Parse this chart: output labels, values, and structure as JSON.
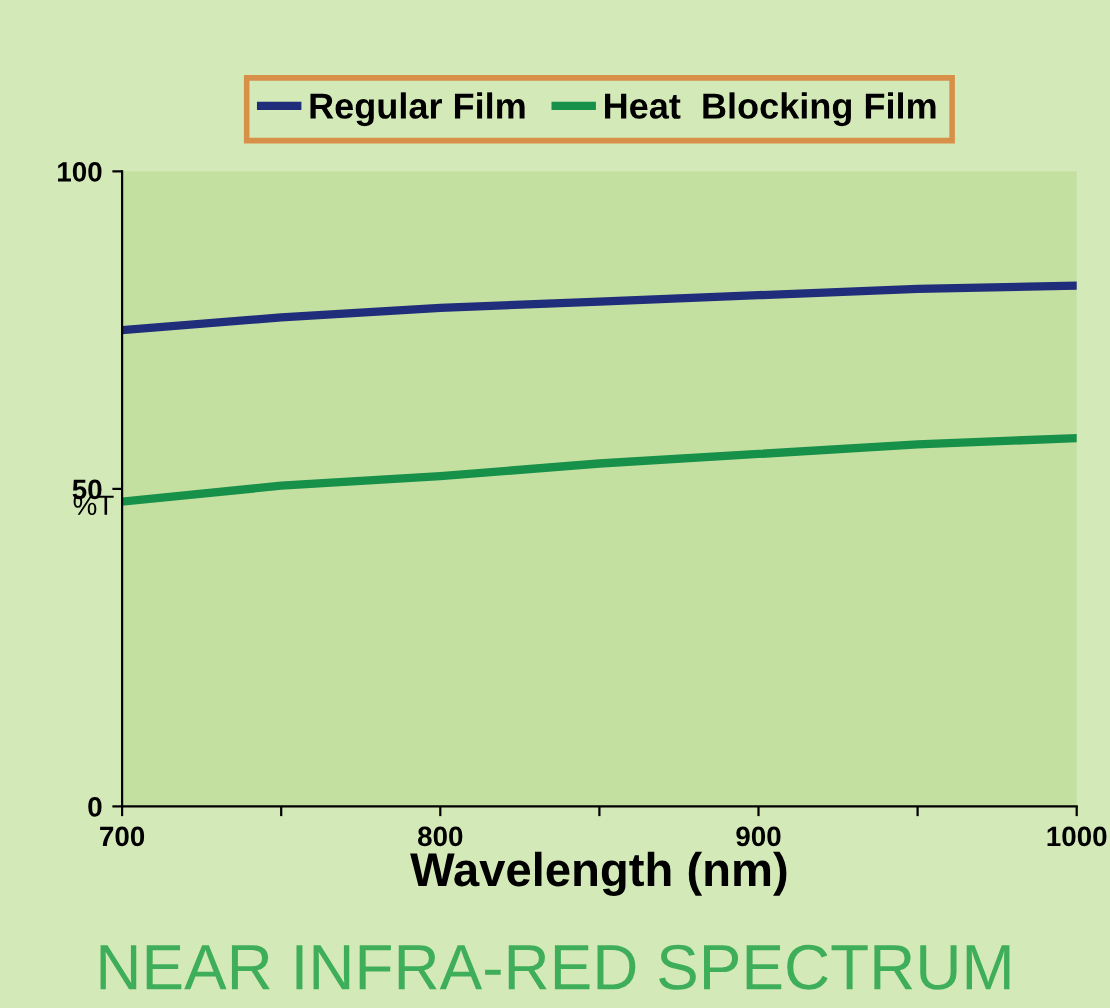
{
  "chart_data": {
    "type": "line",
    "title": "NEAR INFRA-RED SPECTRUM",
    "xlabel": "Wavelength (nm)",
    "ylabel": "%T",
    "xlim": [
      700,
      1000
    ],
    "ylim": [
      0,
      100
    ],
    "xticks": [
      700,
      {
        "value": 750,
        "label": null
      },
      800,
      {
        "value": 850,
        "label": null
      },
      900,
      {
        "value": 950,
        "label": null
      },
      1000
    ],
    "yticks": [
      0,
      50,
      100
    ],
    "grid": false,
    "legend": "top",
    "marker": "none",
    "line_style": "solid",
    "series": [
      {
        "name": "Regular Film",
        "color": "#1f2d7a",
        "x": [
          700,
          750,
          800,
          850,
          900,
          950,
          1000
        ],
        "values": [
          75,
          77,
          78.5,
          79.5,
          80.5,
          81.5,
          82
        ]
      },
      {
        "name": "Heat  Blocking Film",
        "color": "#17904a",
        "x": [
          700,
          750,
          800,
          850,
          900,
          950,
          1000
        ],
        "values": [
          48,
          50.5,
          52,
          54,
          55.5,
          57,
          58
        ]
      }
    ]
  }
}
